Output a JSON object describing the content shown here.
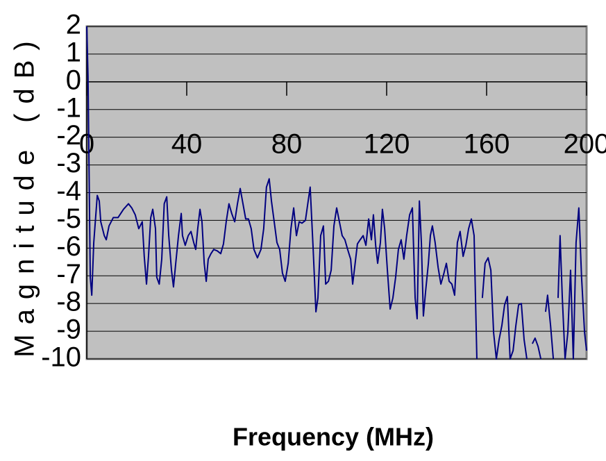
{
  "chart_data": {
    "type": "line",
    "x_label": "Frequency (MHz)",
    "y_label": "Magnitude (dB)",
    "xlim": [
      0,
      200
    ],
    "xticks": [
      0,
      40,
      80,
      120,
      160,
      200
    ],
    "ylim": [
      -10,
      2
    ],
    "yticks": [
      2,
      1,
      0,
      -1,
      -2,
      -3,
      -4,
      -5,
      -6,
      -7,
      -8,
      -9,
      -10
    ],
    "grid": true,
    "plot_background": "#c0c0c0",
    "x": [
      0,
      0.5,
      1.4,
      2,
      2.8,
      4.2,
      5,
      5.6,
      7,
      7.8,
      8.9,
      10.6,
      12.5,
      14.7,
      16.7,
      18,
      19.4,
      20.8,
      22.2,
      23,
      23.9,
      24.7,
      25.6,
      26.4,
      27.5,
      28,
      29,
      30,
      31,
      32,
      32.8,
      33.9,
      34.7,
      35.6,
      36.7,
      37.8,
      38.3,
      39.4,
      40.6,
      41.7,
      42.8,
      43.6,
      44.4,
      45.3,
      46.1,
      47,
      47.8,
      48.6,
      49.7,
      50.8,
      52.2,
      53.6,
      54.7,
      55.8,
      56.9,
      58,
      59.2,
      60.3,
      61.4,
      62.5,
      63.6,
      64.7,
      65.8,
      66.9,
      68.3,
      69.7,
      70.8,
      71.9,
      73,
      73.9,
      75,
      76.1,
      77.2,
      78.3,
      79.4,
      80.6,
      81.7,
      82.8,
      83.9,
      85,
      86.1,
      87.5,
      88.6,
      89.4,
      90.6,
      91.7,
      92.5,
      93.6,
      94.7,
      95.6,
      96.7,
      97.8,
      98.9,
      100,
      101.1,
      102.2,
      103.3,
      104.4,
      105.6,
      106.4,
      107.2,
      108.3,
      109.4,
      110.6,
      111.7,
      112.8,
      113.9,
      114.7,
      115.6,
      116.4,
      117.5,
      118.3,
      119.2,
      120.3,
      121.4,
      122.5,
      123.6,
      124.7,
      125.8,
      126.9,
      128,
      129.2,
      130.3,
      131.4,
      132.2,
      133.1,
      133.9,
      134.7,
      135.6,
      136.7,
      137.5,
      138.3,
      139.4,
      140.6,
      141.7,
      142.8,
      143.9,
      145,
      146.1,
      147.2,
      148.3,
      149.4,
      150.6,
      151.7,
      152.8,
      153.9,
      155,
      156.1,
      157.2,
      158.3,
      159.4,
      160.6,
      161.7,
      162.8,
      163.9,
      165,
      166.1,
      167.2,
      168.3,
      169.4,
      170.6,
      171.7,
      172.8,
      173.9,
      175,
      176.1,
      177.2,
      178.3,
      179.4,
      180.6,
      181.7,
      182.5,
      183.6,
      184.4,
      185.6,
      186.7,
      187.6,
      188.6,
      189.4,
      190.3,
      191.4,
      192.5,
      193.6,
      194.7,
      195.8,
      196.9,
      198,
      199.2,
      200
    ],
    "series": [
      {
        "color": "#000080",
        "values": [
          2,
          0.2,
          -7.05,
          -7.7,
          -5.8,
          -4.1,
          -4.3,
          -5.05,
          -5.55,
          -5.7,
          -5.2,
          -4.9,
          -4.9,
          -4.6,
          -4.4,
          -4.55,
          -4.8,
          -5.3,
          -5.05,
          -6.3,
          -7.3,
          -6.3,
          -4.9,
          -4.6,
          -5.3,
          -7.05,
          -7.3,
          -6.4,
          -4.4,
          -4.15,
          -5.55,
          -6.8,
          -7.4,
          -6.55,
          -5.55,
          -4.75,
          -5.55,
          -5.9,
          -5.55,
          -5.4,
          -5.8,
          -6.05,
          -5.3,
          -4.6,
          -5.05,
          -6.55,
          -7.2,
          -6.4,
          -6.2,
          -6.05,
          -6.1,
          -6.2,
          -5.85,
          -5.05,
          -4.4,
          -4.75,
          -5.05,
          -4.4,
          -3.85,
          -4.4,
          -4.95,
          -4.95,
          -5.3,
          -6.05,
          -6.35,
          -6.05,
          -5.3,
          -3.8,
          -3.5,
          -4.3,
          -5.05,
          -5.8,
          -6.05,
          -6.9,
          -7.2,
          -6.55,
          -5.3,
          -4.55,
          -5.55,
          -5.05,
          -5.1,
          -5,
          -4.3,
          -3.8,
          -6.05,
          -8.3,
          -7.8,
          -5.55,
          -5.2,
          -7.3,
          -7.2,
          -6.8,
          -5.2,
          -4.55,
          -5.05,
          -5.55,
          -5.7,
          -6.05,
          -6.4,
          -7.3,
          -6.7,
          -5.85,
          -5.7,
          -5.55,
          -5.9,
          -4.95,
          -5.7,
          -4.8,
          -5.9,
          -6.55,
          -5.8,
          -4.6,
          -5.3,
          -6.8,
          -8.2,
          -7.8,
          -7.05,
          -6.05,
          -5.7,
          -6.4,
          -5.55,
          -4.8,
          -4.55,
          -7.8,
          -8.55,
          -4.3,
          -5.8,
          -8.45,
          -7.55,
          -6.55,
          -5.55,
          -5.2,
          -5.8,
          -6.7,
          -7.3,
          -6.95,
          -6.55,
          -7.2,
          -7.3,
          -7.7,
          -5.8,
          -5.4,
          -6.3,
          -5.9,
          -5.3,
          -4.95,
          -5.55,
          -10,
          null,
          -7.8,
          -6.55,
          -6.35,
          -6.8,
          -9.05,
          -10,
          -9.3,
          -8.8,
          -8.05,
          -7.75,
          -10,
          -9.7,
          -8.8,
          -8.05,
          -8,
          -9.3,
          -10,
          null,
          -9.45,
          -9.25,
          -9.55,
          -10,
          null,
          -8.3,
          -7.7,
          -8.8,
          -10,
          null,
          -7.8,
          -5.55,
          -7.8,
          -10,
          -9.05,
          -6.8,
          -10,
          -5.8,
          -4.55,
          -7.05,
          -9.05,
          -9.7
        ]
      }
    ]
  }
}
